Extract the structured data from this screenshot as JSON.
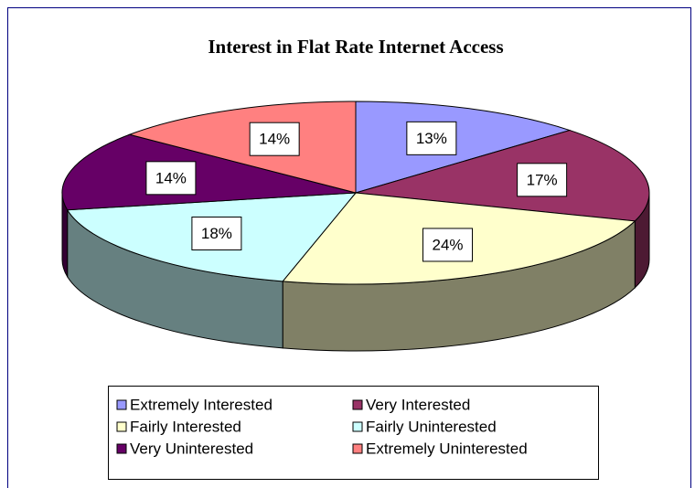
{
  "chart_data": {
    "type": "pie3d",
    "title": "Interest in Flat Rate Internet Access",
    "categories": [
      "Extremely Interested",
      "Very Interested",
      "Fairly Interested",
      "Fairly Uninterested",
      "Very Uninterested",
      "Extremely Uninterested"
    ],
    "values": [
      13,
      17,
      24,
      18,
      14,
      14
    ],
    "value_labels": [
      "13%",
      "17%",
      "24%",
      "18%",
      "14%",
      "14%"
    ],
    "colors": [
      "#9999ff",
      "#993366",
      "#ffffcc",
      "#ccffff",
      "#660066",
      "#ff8080"
    ],
    "legend": "bottom"
  }
}
